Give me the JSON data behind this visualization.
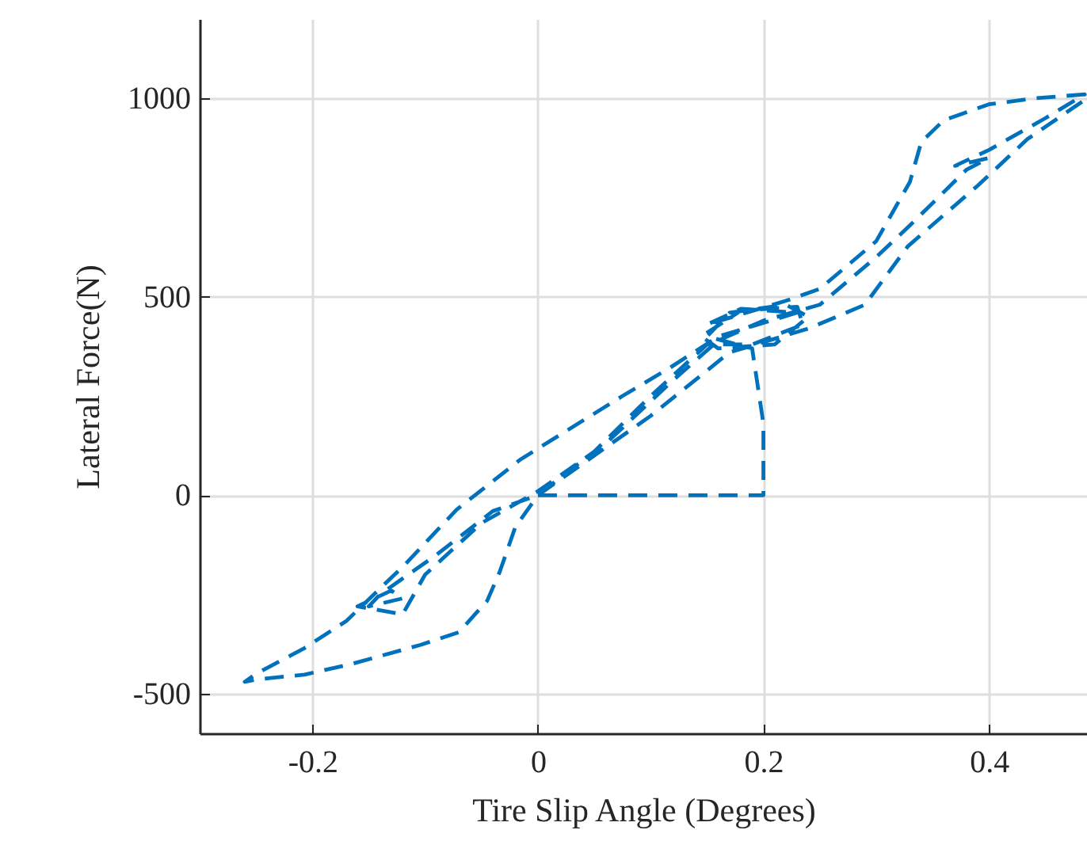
{
  "chart_data": {
    "type": "line",
    "xlabel": "Tire Slip Angle (Degrees)",
    "ylabel": "Lateral Force(N)",
    "x": [
      0,
      0.1,
      0.2,
      0.2,
      0.19,
      0.15,
      0.17,
      0.22,
      0.24,
      0.21,
      0.16,
      0.145,
      0.18,
      0.23,
      0.235,
      0.19,
      0.15,
      0.1,
      0.05,
      0,
      -0.04,
      -0.09,
      -0.14,
      -0.15,
      -0.12,
      -0.13,
      -0.16,
      -0.12,
      -0.1,
      -0.05,
      0,
      0.06,
      0.12,
      0.16,
      0.2,
      0.25,
      0.3,
      0.33,
      0.38,
      0.4,
      0.37,
      0.4,
      0.45,
      0.485,
      0.44,
      0.4,
      0.36,
      0.34,
      0.33,
      0.3,
      0.25,
      0.22,
      0.15,
      0.18,
      0.23,
      0.16,
      0.117,
      0.075,
      -0.015,
      -0.072,
      -0.118,
      -0.17,
      -0.207,
      -0.25,
      -0.26,
      -0.249,
      -0.207,
      -0.165,
      -0.104,
      -0.07,
      -0.045,
      -0.034,
      -0.02,
      0,
      0.1,
      0.17,
      0.24,
      0.29,
      0.328,
      0.39,
      0.434,
      0.487
    ],
    "values": [
      0,
      0,
      0,
      180,
      370,
      400,
      460,
      480,
      450,
      380,
      370,
      400,
      465,
      475,
      430,
      380,
      380,
      250,
      110,
      0,
      -40,
      -150,
      -250,
      -280,
      -260,
      -240,
      -280,
      -300,
      -200,
      -70,
      10,
      130,
      290,
      390,
      440,
      480,
      600,
      680,
      820,
      850,
      830,
      870,
      950,
      1010,
      1000,
      985,
      945,
      890,
      790,
      640,
      520,
      490,
      430,
      470,
      460,
      400,
      321,
      250,
      91,
      -36,
      -175,
      -317,
      -385,
      -450,
      -470,
      -464,
      -452,
      -425,
      -377,
      -345,
      -266,
      -194,
      -80,
      0,
      200,
      360,
      420,
      480,
      627,
      780,
      897,
      1000
    ],
    "color": "#0072bd",
    "line_style": "dashed",
    "grid": true,
    "xlim": [
      -0.3,
      0.487
    ],
    "xticks": [
      -0.2,
      0,
      0.2,
      0.4
    ],
    "ylim": [
      -600,
      1200
    ],
    "yticks": [
      -500,
      0,
      500,
      1000
    ]
  }
}
